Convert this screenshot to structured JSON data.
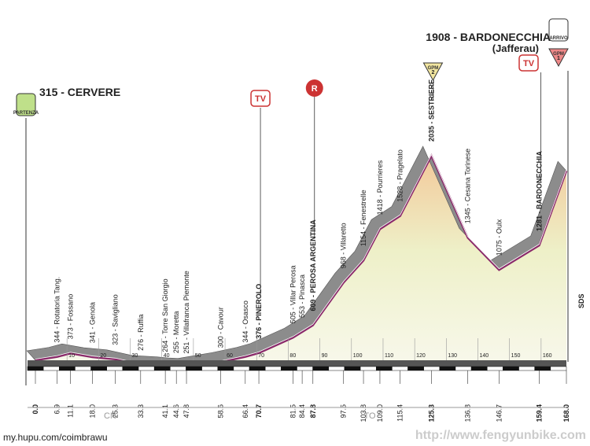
{
  "chart_data": {
    "type": "area",
    "start_label": "315 - CERVERE",
    "finish_label": "1908 - BARDONECCHIA",
    "finish_sublabel": "(Jafferau)",
    "x": [
      0,
      6.9,
      11.1,
      18.0,
      25.3,
      33.3,
      41.1,
      44.6,
      47.8,
      58.6,
      66.4,
      70.7,
      81.5,
      84.4,
      87.8,
      97.5,
      103.8,
      109.0,
      115.4,
      125.3,
      136.8,
      146.7,
      159.4,
      168
    ],
    "x_value_labels": [
      "0.0",
      "6.9",
      "11.1",
      "18.0",
      "25.3",
      "33.3",
      "41.1",
      "44.6",
      "47.8",
      "58.6",
      "66.4",
      "70.7",
      "81.5",
      "84.4",
      "87.8",
      "97.5",
      "103.8",
      "109.0",
      "115.4",
      "125.3",
      "136.8",
      "146.7",
      "159.4",
      "168.0"
    ],
    "values": [
      315,
      344,
      373,
      341,
      323,
      276,
      264,
      255,
      251,
      300,
      344,
      376,
      505,
      553,
      609,
      968,
      1154,
      1418,
      1528,
      2035,
      1345,
      1075,
      1281,
      1908
    ],
    "point_labels": [
      null,
      "344 - Rotatoria Tang.",
      "373 - Fossano",
      "341 - Genola",
      "323 - Savigliano",
      "276 - Ruffia",
      "264 - Torre San Giorgio",
      "255 - Moretta",
      "251 - Villafranca Piemonte",
      "300 - Cavour",
      "344 - Osasco",
      "376 - PINEROLO",
      "505 - Villar Perosa",
      "553 - Pinasca",
      "609 - PEROSA ARGENTINA",
      "968 - Villaretto",
      "1154 - Fenestrelle",
      "1418 - Pourrieres",
      "1528 - Pragelato",
      "2035 - SESTRIERE",
      "1345 - Cesana Torinese",
      "1075 - Oulx",
      "1281 - BARDONECCHIA",
      null
    ],
    "xlim": [
      0,
      168
    ],
    "xticks": [
      10,
      20,
      30,
      40,
      50,
      60,
      70,
      80,
      90,
      100,
      110,
      120,
      130,
      140,
      150,
      160
    ],
    "ylim": [
      315,
      2035
    ],
    "color": "#8a2a6a",
    "regions": [
      "CN",
      "TO"
    ],
    "end_tag": "SDS",
    "markers": [
      "PARTENZA",
      "TV",
      "R",
      "GPM",
      "TV",
      "ARRIVO",
      "GPM"
    ],
    "marker_numbers": [
      "2",
      "1"
    ],
    "watermarks": [
      "my.hupu.com/coimbrawu",
      "http://www.fengyunbike.com"
    ]
  }
}
